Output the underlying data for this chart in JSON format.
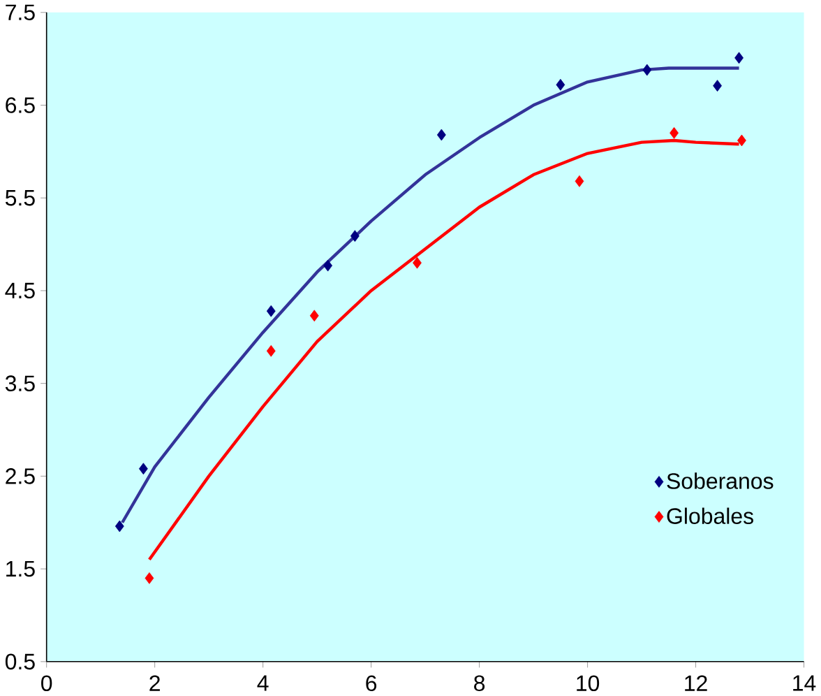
{
  "chart_data": {
    "type": "scatter",
    "xlim": [
      0,
      14
    ],
    "ylim": [
      0.5,
      7.5
    ],
    "xticks": [
      0,
      2,
      4,
      6,
      8,
      10,
      12,
      14
    ],
    "yticks": [
      0.5,
      1.5,
      2.5,
      3.5,
      4.5,
      5.5,
      6.5,
      7.5
    ],
    "grid": false,
    "legend": "bottom right",
    "series": [
      {
        "type": "line",
        "color": "#333399",
        "marker": "none",
        "line_style": "solid",
        "x": [
          1.4,
          2,
          3,
          4,
          5,
          6,
          7,
          8,
          9,
          10,
          11,
          11.5,
          12.8
        ],
        "values": [
          2.0,
          2.6,
          3.35,
          4.05,
          4.7,
          5.25,
          5.75,
          6.15,
          6.5,
          6.75,
          6.88,
          6.9,
          6.9
        ]
      },
      {
        "type": "line",
        "color": "#ff0000",
        "marker": "none",
        "line_style": "solid",
        "x": [
          1.9,
          3,
          4,
          5,
          6,
          7,
          8,
          9,
          10,
          11,
          11.6,
          12,
          12.8
        ],
        "values": [
          1.6,
          2.5,
          3.25,
          3.95,
          4.5,
          4.95,
          5.4,
          5.75,
          5.98,
          6.1,
          6.12,
          6.1,
          6.08
        ]
      },
      {
        "name": "Soberanos",
        "color": "#000080",
        "marker": "diamond",
        "x": [
          1.35,
          1.79,
          4.15,
          5.2,
          5.7,
          7.3,
          9.5,
          11.1,
          12.4,
          12.8
        ],
        "values": [
          1.96,
          2.58,
          4.28,
          4.77,
          5.09,
          6.18,
          6.72,
          6.88,
          6.71,
          7.01
        ]
      },
      {
        "name": "Globales",
        "color": "#ff0000",
        "marker": "diamond",
        "x": [
          1.9,
          4.15,
          4.95,
          6.85,
          9.85,
          11.6,
          12.85
        ],
        "values": [
          1.4,
          3.85,
          4.23,
          4.8,
          5.68,
          6.2,
          6.12
        ]
      }
    ]
  }
}
